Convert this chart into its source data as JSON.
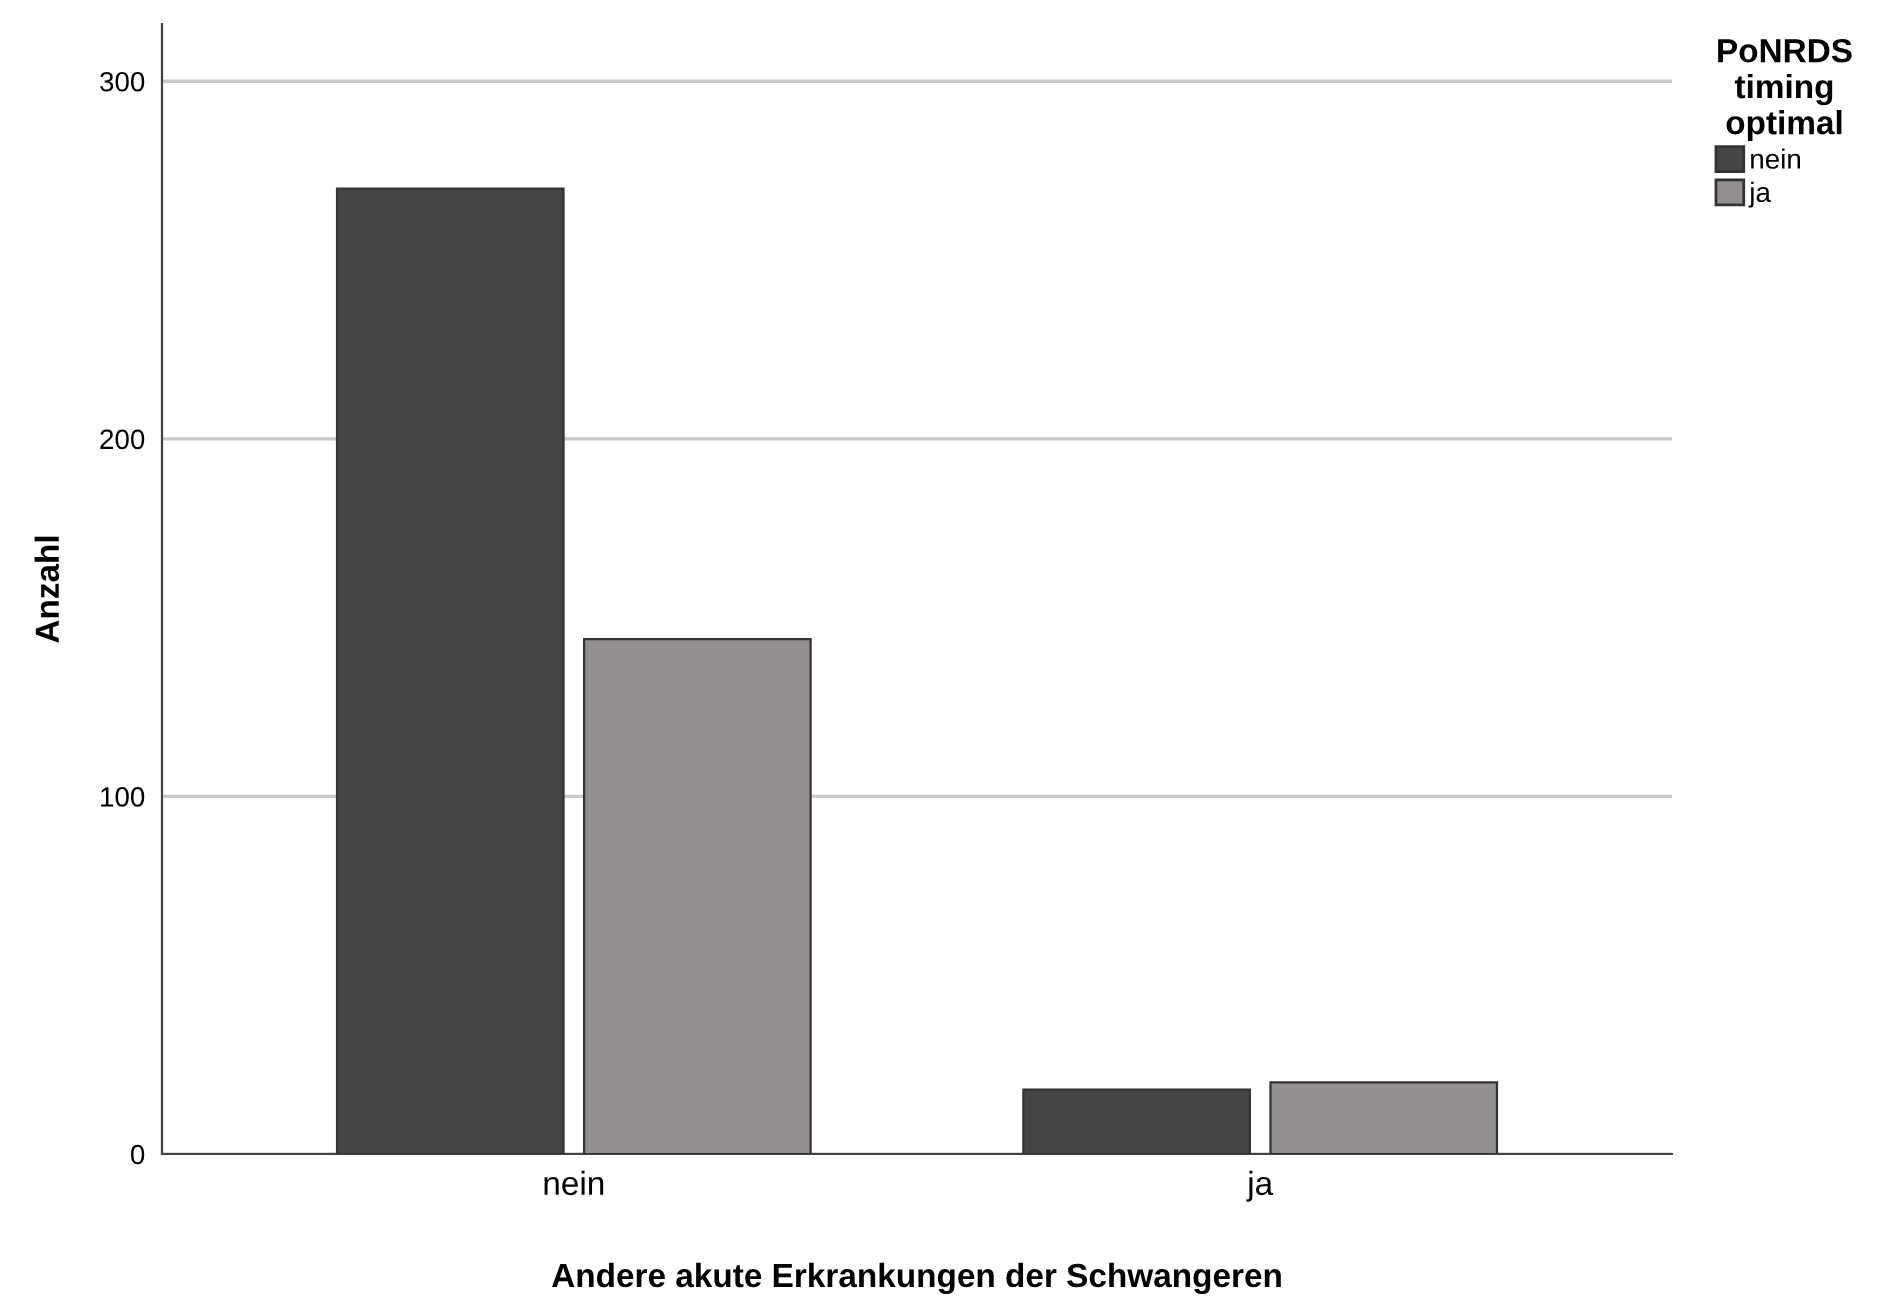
{
  "chart_data": {
    "type": "bar",
    "xlabel": "Andere akute Erkrankungen der Schwangeren",
    "ylabel": "Anzahl",
    "legend_title": "PoNRDS\ntiming\noptimal",
    "categories": [
      "nein",
      "ja"
    ],
    "series": [
      {
        "name": "nein",
        "color": "#444547",
        "values": [
          270,
          18
        ]
      },
      {
        "name": "ja",
        "color": "#938f8e",
        "values": [
          144,
          20
        ]
      }
    ],
    "ylim": [
      0,
      316
    ],
    "yticks": [
      0,
      100,
      200,
      300
    ],
    "grid": "y",
    "legend": "top right"
  }
}
